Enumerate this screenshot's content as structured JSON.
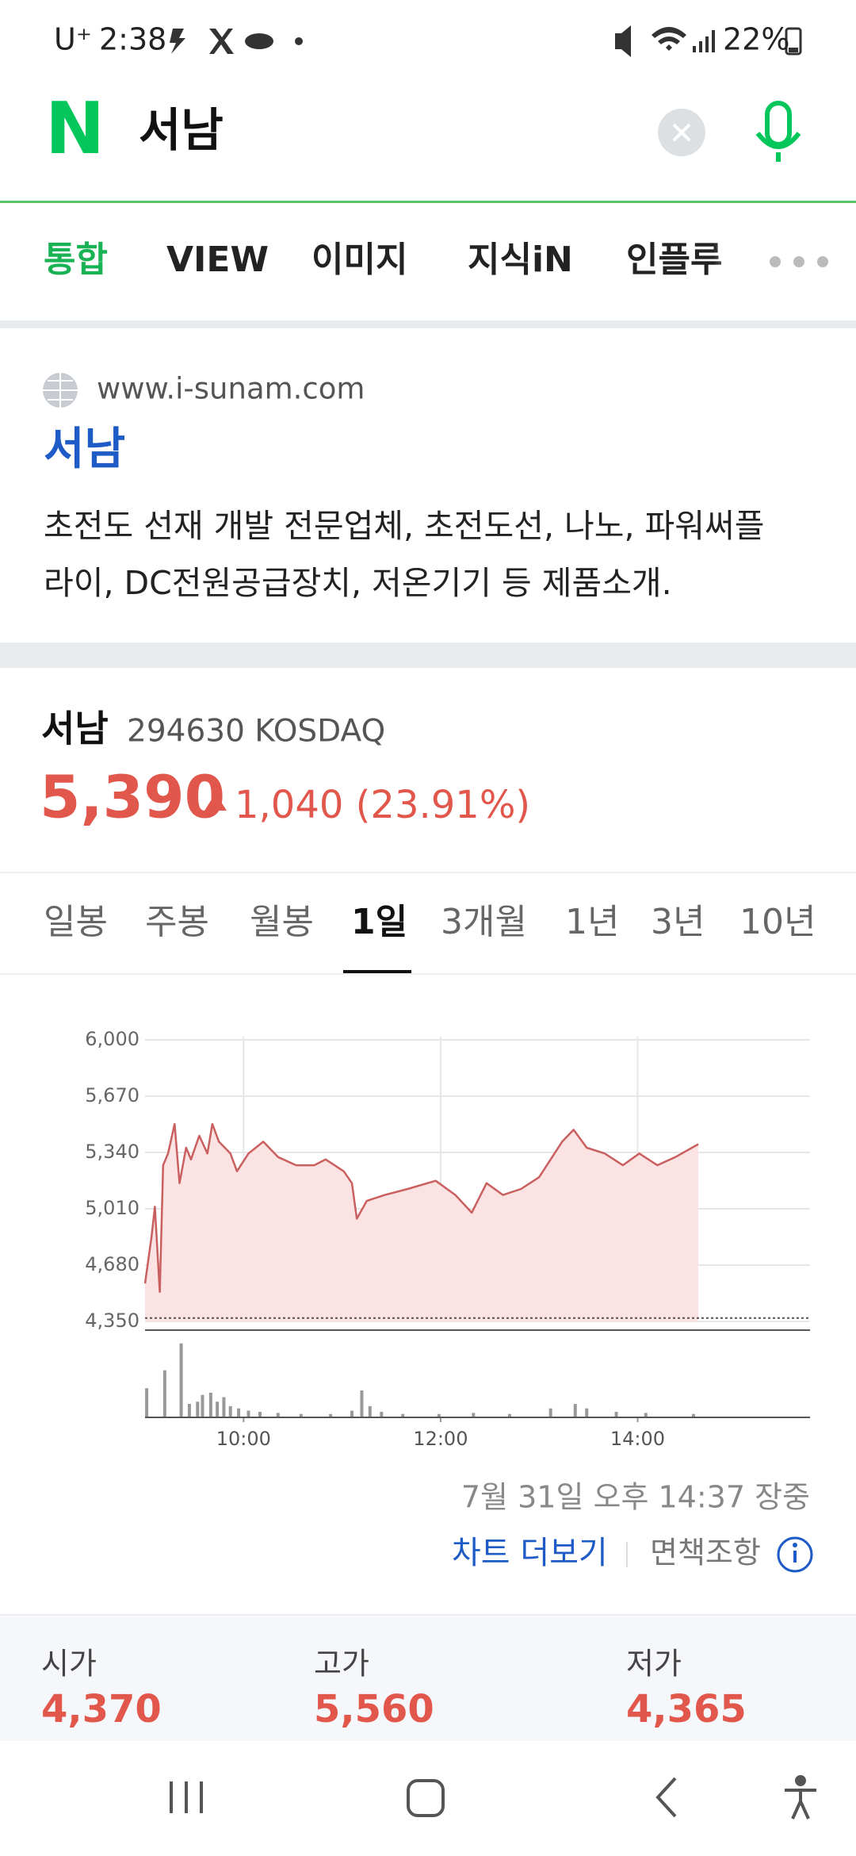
{
  "status_bar": {
    "carrier": "U⁺",
    "time": "2:38",
    "battery": "22%"
  },
  "search": {
    "logo": "N",
    "query": "서남"
  },
  "tabs": [
    "통합",
    "VIEW",
    "이미지",
    "지식iN",
    "인플루"
  ],
  "site": {
    "url": "www.i-sunam.com",
    "title": "서남",
    "description": [
      "초전도 선재 개발 전문업체, 초전도선, 나노, 파워써플",
      "라이, DC전원공급장치, 저온기기 등 제품소개."
    ]
  },
  "stock": {
    "name": "서남",
    "code": "294630 KOSDAQ",
    "price": "5,390",
    "change": "1,040 (23.91%)"
  },
  "periods": [
    "일봉",
    "주봉",
    "월봉",
    "1일",
    "3개월",
    "1년",
    "3년",
    "10년"
  ],
  "chart_data": {
    "type": "line",
    "color": "#c9605f",
    "fill": "#fbe3e3",
    "grid": true,
    "xlim": [
      "09:00",
      "15:45"
    ],
    "xticks": [
      "10:00",
      "12:00",
      "14:00"
    ],
    "ylim": [
      4350,
      6000
    ],
    "yticks": [
      {
        "value": 4350,
        "label": "4,350"
      },
      {
        "value": 4680,
        "label": "4,680"
      },
      {
        "value": 5010,
        "label": "5,010"
      },
      {
        "value": 5340,
        "label": "5,340"
      },
      {
        "value": 5670,
        "label": "5,670"
      },
      {
        "value": 6000,
        "label": "6,000"
      }
    ],
    "series": [
      {
        "x": [
          "09:00",
          "09:04",
          "09:06",
          "09:09",
          "09:11",
          "09:14",
          "09:18",
          "09:21",
          "09:25",
          "09:28",
          "09:33",
          "09:38",
          "09:41",
          "09:45",
          "09:52",
          "09:56",
          "10:03",
          "10:12",
          "10:21",
          "10:32",
          "10:43",
          "10:50",
          "11:01",
          "11:06",
          "11:09",
          "11:15",
          "11:26",
          "11:40",
          "11:57",
          "12:09",
          "12:19",
          "12:28",
          "12:38",
          "12:49",
          "13:00",
          "13:07",
          "13:14",
          "13:21",
          "13:29",
          "13:40",
          "13:51",
          "14:01",
          "14:12",
          "14:23",
          "14:37"
        ],
        "values": [
          4572,
          4850,
          5022,
          4523,
          5265,
          5334,
          5507,
          5160,
          5368,
          5299,
          5438,
          5334,
          5507,
          5403,
          5334,
          5230,
          5334,
          5403,
          5313,
          5265,
          5265,
          5299,
          5230,
          5160,
          4952,
          5056,
          5091,
          5126,
          5174,
          5091,
          4987,
          5160,
          5091,
          5126,
          5195,
          5299,
          5403,
          5473,
          5368,
          5334,
          5265,
          5334,
          5265,
          5313,
          5389
        ]
      }
    ],
    "volume": {
      "color": "#999999",
      "lim": [
        0,
        70
      ],
      "x": [
        "09:01",
        "09:12",
        "09:22",
        "09:27",
        "09:32",
        "09:35",
        "09:40",
        "09:44",
        "09:48",
        "09:52",
        "09:57",
        "10:03",
        "10:10",
        "10:21",
        "10:35",
        "10:53",
        "11:06",
        "11:12",
        "11:17",
        "11:24",
        "11:37",
        "11:59",
        "12:20",
        "12:42",
        "13:07",
        "13:22",
        "13:29",
        "13:47",
        "14:05",
        "14:34"
      ],
      "values": [
        26,
        42,
        66,
        12,
        14,
        20,
        22,
        14,
        18,
        10,
        8,
        6,
        5,
        4,
        3,
        3,
        6,
        24,
        10,
        5,
        3,
        3,
        4,
        3,
        8,
        12,
        8,
        5,
        4,
        3
      ]
    }
  },
  "chart_footer": {
    "timestamp": "7월 31일 오후 14:37 장중",
    "more": "차트 더보기",
    "disclaimer": "면책조항"
  },
  "stats": [
    {
      "label": "시가",
      "value": {
        "value": 4370,
        "label": "4,370"
      }
    },
    {
      "label": "고가",
      "value": {
        "value": 5560,
        "label": "5,560"
      }
    },
    {
      "label": "저가",
      "value": {
        "value": 4365,
        "label": "4,365"
      }
    }
  ]
}
